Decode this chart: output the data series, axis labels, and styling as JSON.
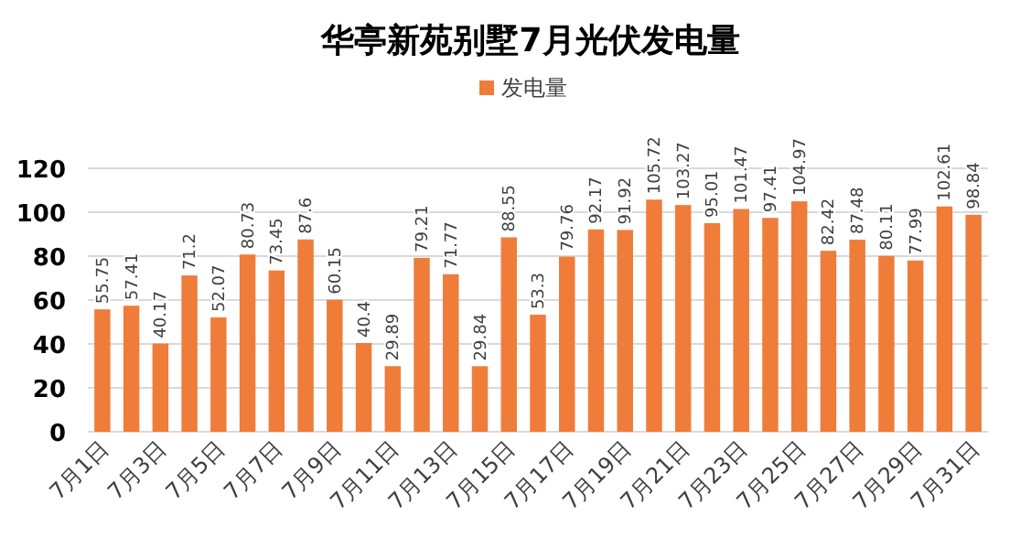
{
  "chart_data": {
    "type": "bar",
    "title": "华亭新苑别墅7月光伏发电量",
    "categories": [
      "7月1日",
      null,
      "7月3日",
      null,
      "7月5日",
      null,
      "7月7日",
      null,
      "7月9日",
      null,
      "7月11日",
      null,
      "7月13日",
      null,
      "7月15日",
      null,
      "7月17日",
      null,
      "7月19日",
      null,
      "7月21日",
      null,
      "7月23日",
      null,
      "7月25日",
      null,
      "7月27日",
      null,
      "7月29日",
      null,
      "7月31日"
    ],
    "series": [
      {
        "name": "发电量",
        "color": "#f07c3a",
        "values": [
          55.75,
          57.41,
          40.17,
          71.2,
          52.07,
          80.73,
          73.45,
          87.6,
          60.15,
          40.4,
          29.89,
          79.21,
          71.77,
          29.84,
          88.55,
          53.3,
          79.76,
          92.17,
          91.92,
          105.72,
          103.27,
          95.01,
          101.47,
          97.41,
          104.97,
          82.42,
          87.48,
          80.11,
          77.99,
          102.61,
          98.84
        ]
      }
    ],
    "data_labels": true,
    "ylim": [
      0,
      120
    ],
    "yticks": [
      0,
      20,
      40,
      60,
      80,
      100,
      120
    ],
    "grid": "y",
    "legend": "top"
  }
}
